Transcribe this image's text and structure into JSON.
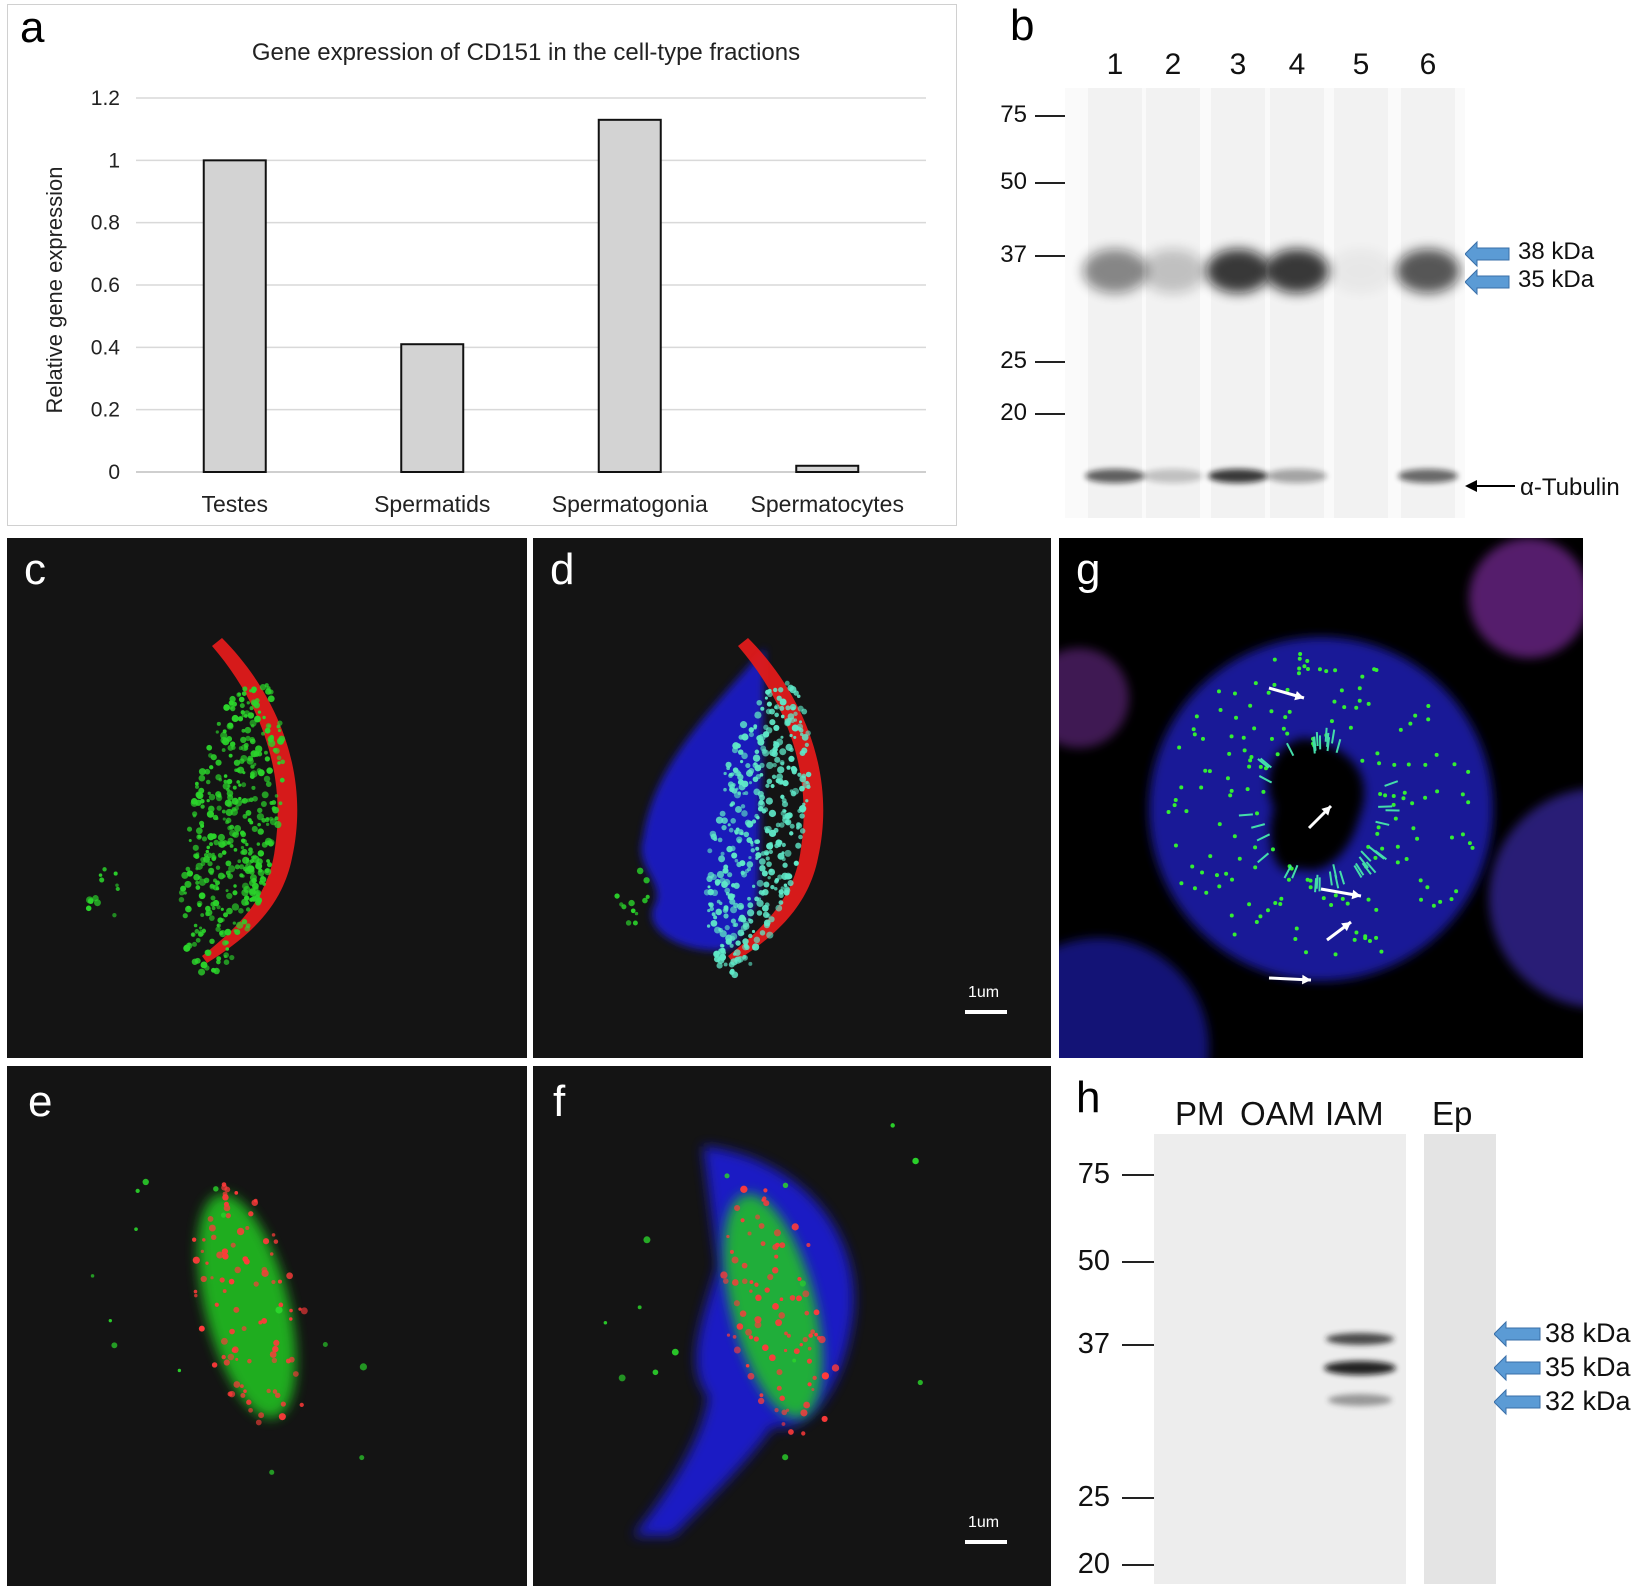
{
  "panels": {
    "a": {
      "letter": "a"
    },
    "b": {
      "letter": "b"
    },
    "c": {
      "letter": "c"
    },
    "d": {
      "letter": "d"
    },
    "e": {
      "letter": "e"
    },
    "f": {
      "letter": "f"
    },
    "g": {
      "letter": "g"
    },
    "h": {
      "letter": "h"
    }
  },
  "chart_data": {
    "type": "bar",
    "title": "Gene expression of CD151 in the cell-type fractions",
    "xlabel": "",
    "ylabel": "Relative gene expression",
    "categories": [
      "Testes",
      "Spermatids",
      "Spermatogonia",
      "Spermatocytes"
    ],
    "values": [
      1.0,
      0.41,
      1.13,
      0.02
    ],
    "ylim": [
      0,
      1.2
    ],
    "yticks": [
      "0",
      "0.2",
      "0.4",
      "0.6",
      "0.8",
      "1",
      "1.2"
    ],
    "grid": true,
    "bar_color": "#d3d3d3"
  },
  "blot_b": {
    "lanes": [
      "1",
      "2",
      "3",
      "4",
      "5",
      "6"
    ],
    "ladder": [
      "75",
      "50",
      "37",
      "25",
      "20"
    ],
    "bands": [
      "38 kDa",
      "35 kDa"
    ],
    "tubulin_label": "α-Tubulin",
    "band_intensity": [
      0.55,
      0.25,
      0.95,
      0.95,
      0.05,
      0.8
    ],
    "tubulin_intensity": [
      0.75,
      0.25,
      0.95,
      0.4,
      0.0,
      0.7
    ]
  },
  "blot_h": {
    "lanes": [
      "PM",
      "OAM",
      "IAM",
      "Ep"
    ],
    "ladder": [
      "75",
      "50",
      "37",
      "25",
      "20"
    ],
    "bands": [
      "38 kDa",
      "35 kDa",
      "32 kDa"
    ]
  },
  "scale_bars": {
    "d": "1um",
    "f": "1um"
  },
  "colors": {
    "arrow_blue": "#5b9bd5",
    "red": "#e02020",
    "green": "#22c022",
    "blue": "#1f1fd0"
  }
}
